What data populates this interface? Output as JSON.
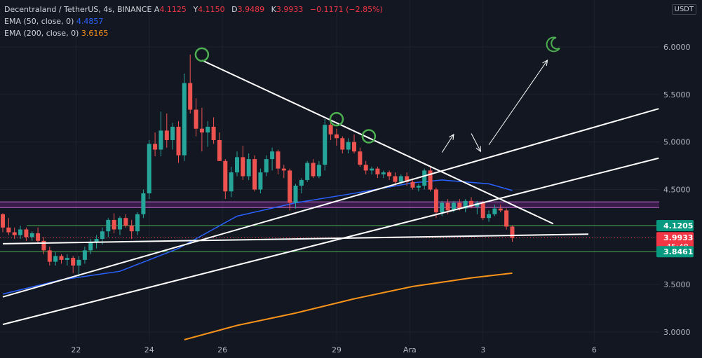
{
  "legend": {
    "symbol": "Decentraland / TetherUS, 4s, BINANCE",
    "open_label": "A",
    "open": "4.1125",
    "high_label": "Y",
    "high": "4.1150",
    "low_label": "D",
    "low": "3.9489",
    "close_label": "K",
    "close": "3.9933",
    "change": "−0.1171 (−2.85%)",
    "ema50_label": "EMA (50, close, 0)",
    "ema50_value": "4.4857",
    "ema200_label": "EMA (200, close, 0)",
    "ema200_value": "3.6165"
  },
  "unit": "USDT",
  "colors": {
    "background": "#131722",
    "up": "#26a69a",
    "down": "#ef5350",
    "ema50": "#2962ff",
    "ema200": "#f7931a",
    "zone": "#9c27b0",
    "support_lines": "#4caf50",
    "drawing": "#ffffff",
    "price_tag": "#f23645",
    "level_tag": "#089981"
  },
  "chart_data": {
    "type": "candlestick",
    "y_ticks": [
      "3.0000",
      "3.5000",
      "4.0000",
      "4.5000",
      "5.0000",
      "5.5000",
      "6.0000"
    ],
    "x_ticks": [
      "22",
      "24",
      "26",
      "29",
      "Ara",
      "3",
      "6"
    ],
    "ylim": [
      2.9,
      6.5
    ],
    "price_tags": [
      {
        "value": 4.1205,
        "label": "4.1205",
        "kind": "level"
      },
      {
        "value": 3.9933,
        "label": "3.9933",
        "sub": "45:48",
        "kind": "price"
      },
      {
        "value": 3.8461,
        "label": "3.8461",
        "kind": "level"
      }
    ],
    "horizontal_levels": [
      4.1205,
      3.8461
    ],
    "zone": [
      4.31,
      4.37
    ],
    "candles": [
      [
        4.24,
        4.25,
        4.05,
        4.1
      ],
      [
        4.1,
        4.2,
        4.02,
        4.05
      ],
      [
        4.05,
        4.1,
        3.98,
        4.02
      ],
      [
        4.02,
        4.12,
        3.98,
        4.08
      ],
      [
        4.08,
        4.1,
        3.96,
        4.0
      ],
      [
        4.0,
        4.06,
        3.96,
        4.04
      ],
      [
        4.04,
        4.1,
        3.94,
        3.96
      ],
      [
        3.96,
        4.0,
        3.82,
        3.86
      ],
      [
        3.86,
        3.9,
        3.7,
        3.74
      ],
      [
        3.74,
        3.84,
        3.7,
        3.8
      ],
      [
        3.8,
        3.82,
        3.72,
        3.76
      ],
      [
        3.76,
        3.82,
        3.7,
        3.78
      ],
      [
        3.78,
        3.8,
        3.62,
        3.7
      ],
      [
        3.7,
        3.8,
        3.58,
        3.76
      ],
      [
        3.76,
        3.9,
        3.72,
        3.86
      ],
      [
        3.86,
        3.98,
        3.82,
        3.94
      ],
      [
        3.94,
        4.02,
        3.88,
        3.98
      ],
      [
        3.98,
        4.1,
        3.92,
        4.06
      ],
      [
        4.06,
        4.2,
        4.0,
        4.18
      ],
      [
        4.18,
        4.25,
        4.04,
        4.08
      ],
      [
        4.08,
        4.22,
        4.02,
        4.2
      ],
      [
        4.2,
        4.24,
        4.1,
        4.12
      ],
      [
        4.12,
        4.18,
        3.98,
        4.06
      ],
      [
        4.06,
        4.26,
        4.02,
        4.24
      ],
      [
        4.24,
        4.5,
        4.2,
        4.46
      ],
      [
        4.46,
        5.02,
        4.4,
        4.98
      ],
      [
        4.98,
        5.1,
        4.85,
        4.92
      ],
      [
        4.92,
        5.32,
        4.85,
        5.12
      ],
      [
        5.12,
        5.3,
        4.94,
        5.02
      ],
      [
        5.02,
        5.2,
        4.92,
        5.16
      ],
      [
        5.16,
        5.22,
        4.78,
        4.86
      ],
      [
        4.86,
        5.72,
        4.8,
        5.62
      ],
      [
        5.62,
        5.92,
        5.3,
        5.34
      ],
      [
        5.34,
        5.46,
        5.06,
        5.14
      ],
      [
        5.14,
        5.36,
        4.9,
        5.1
      ],
      [
        5.1,
        5.22,
        4.95,
        5.16
      ],
      [
        5.16,
        5.26,
        4.98,
        5.02
      ],
      [
        5.02,
        5.1,
        4.8,
        4.8
      ],
      [
        4.8,
        4.82,
        4.4,
        4.48
      ],
      [
        4.48,
        4.74,
        4.42,
        4.68
      ],
      [
        4.68,
        4.9,
        4.64,
        4.84
      ],
      [
        4.84,
        4.96,
        4.6,
        4.64
      ],
      [
        4.64,
        4.88,
        4.6,
        4.82
      ],
      [
        4.82,
        4.86,
        4.48,
        4.5
      ],
      [
        4.5,
        4.72,
        4.46,
        4.68
      ],
      [
        4.68,
        4.86,
        4.64,
        4.82
      ],
      [
        4.82,
        4.94,
        4.7,
        4.9
      ],
      [
        4.9,
        4.92,
        4.66,
        4.72
      ],
      [
        4.72,
        4.76,
        4.62,
        4.7
      ],
      [
        4.7,
        4.72,
        4.28,
        4.36
      ],
      [
        4.36,
        4.56,
        4.3,
        4.54
      ],
      [
        4.54,
        4.62,
        4.46,
        4.6
      ],
      [
        4.6,
        4.8,
        4.58,
        4.78
      ],
      [
        4.78,
        4.82,
        4.62,
        4.64
      ],
      [
        4.64,
        4.8,
        4.62,
        4.76
      ],
      [
        4.76,
        5.24,
        4.7,
        5.18
      ],
      [
        5.18,
        5.28,
        5.02,
        5.08
      ],
      [
        5.08,
        5.14,
        4.96,
        5.04
      ],
      [
        5.04,
        5.06,
        4.88,
        4.92
      ],
      [
        4.92,
        5.04,
        4.88,
        5.0
      ],
      [
        5.0,
        5.08,
        4.88,
        4.9
      ],
      [
        4.9,
        4.94,
        4.74,
        4.76
      ],
      [
        4.76,
        4.8,
        4.66,
        4.7
      ],
      [
        4.7,
        4.74,
        4.66,
        4.72
      ],
      [
        4.72,
        4.74,
        4.62,
        4.66
      ],
      [
        4.66,
        4.7,
        4.62,
        4.68
      ],
      [
        4.68,
        4.7,
        4.6,
        4.64
      ],
      [
        4.64,
        4.68,
        4.54,
        4.58
      ],
      [
        4.58,
        4.66,
        4.56,
        4.64
      ],
      [
        4.64,
        4.68,
        4.54,
        4.58
      ],
      [
        4.58,
        4.62,
        4.5,
        4.52
      ],
      [
        4.52,
        4.56,
        4.48,
        4.54
      ],
      [
        4.54,
        4.72,
        4.5,
        4.7
      ],
      [
        4.7,
        4.74,
        4.48,
        4.5
      ],
      [
        4.5,
        4.52,
        4.2,
        4.26
      ],
      [
        4.26,
        4.38,
        4.22,
        4.36
      ],
      [
        4.36,
        4.4,
        4.24,
        4.28
      ],
      [
        4.28,
        4.38,
        4.26,
        4.36
      ],
      [
        4.36,
        4.4,
        4.28,
        4.3
      ],
      [
        4.3,
        4.4,
        4.26,
        4.38
      ],
      [
        4.38,
        4.42,
        4.3,
        4.32
      ],
      [
        4.32,
        4.38,
        4.24,
        4.36
      ],
      [
        4.36,
        4.38,
        4.18,
        4.2
      ],
      [
        4.2,
        4.28,
        4.16,
        4.24
      ],
      [
        4.24,
        4.34,
        4.22,
        4.3
      ],
      [
        4.3,
        4.34,
        4.26,
        4.28
      ],
      [
        4.28,
        4.3,
        4.08,
        4.11
      ],
      [
        4.11,
        4.12,
        3.95,
        3.99
      ]
    ],
    "ema50": [
      [
        0,
        3.4
      ],
      [
        10,
        3.55
      ],
      [
        20,
        3.64
      ],
      [
        30,
        3.88
      ],
      [
        40,
        4.22
      ],
      [
        50,
        4.36
      ],
      [
        60,
        4.46
      ],
      [
        70,
        4.57
      ],
      [
        75,
        4.6
      ],
      [
        83,
        4.56
      ],
      [
        87,
        4.49
      ]
    ],
    "ema200": [
      [
        31,
        2.92
      ],
      [
        40,
        3.07
      ],
      [
        50,
        3.2
      ],
      [
        60,
        3.35
      ],
      [
        70,
        3.48
      ],
      [
        80,
        3.57
      ],
      [
        87,
        3.62
      ]
    ],
    "drawings": [
      {
        "from": [
          34,
          5.86
        ],
        "to": [
          94,
          4.14
        ]
      },
      {
        "from": [
          0,
          3.37
        ],
        "to": [
          112,
          5.35
        ]
      },
      {
        "from": [
          0,
          3.08
        ],
        "to": [
          112,
          4.83
        ]
      },
      {
        "from": [
          0,
          3.93
        ],
        "to": [
          100,
          4.03
        ]
      },
      {
        "from": [
          75,
          4.89
        ],
        "to": [
          77,
          5.08
        ],
        "arrow": true
      },
      {
        "from": [
          80,
          5.09
        ],
        "to": [
          81.6,
          4.9
        ],
        "arrow": true
      },
      {
        "from": [
          83,
          4.97
        ],
        "to": [
          93,
          5.86
        ],
        "arrow": true
      }
    ],
    "circles": [
      [
        34,
        5.92
      ],
      [
        57,
        5.24
      ],
      [
        62.5,
        5.06
      ]
    ],
    "moon": [
      94,
      6.03
    ]
  }
}
